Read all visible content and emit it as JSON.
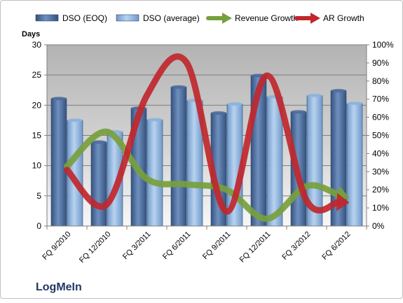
{
  "chart_data": {
    "type": "bar",
    "categories": [
      "FQ 9/2010",
      "FQ 12/2010",
      "FQ 3/2011",
      "FQ 6/2011",
      "FQ 9/2011",
      "FQ 12/2011",
      "FQ 3/2012",
      "FQ 6/2012"
    ],
    "series": [
      {
        "name": "DSO (EOQ)",
        "type": "bar",
        "axis": "left",
        "color": "#4f6d9a",
        "values": [
          21.1,
          13.9,
          19.5,
          23.0,
          18.7,
          24.9,
          18.9,
          22.4
        ]
      },
      {
        "name": "DSO (average)",
        "type": "bar",
        "axis": "left",
        "color": "#8fb4df",
        "values": [
          17.5,
          15.6,
          17.6,
          20.8,
          20.2,
          21.4,
          21.6,
          20.3
        ]
      },
      {
        "name": "Revenue Growth",
        "type": "line",
        "axis": "right",
        "color": "#77a03c",
        "values": [
          0.33,
          0.52,
          0.26,
          0.23,
          0.2,
          0.04,
          0.22,
          0.16
        ]
      },
      {
        "name": "AR Growth",
        "type": "line",
        "axis": "right",
        "color": "#c0272d",
        "values": [
          0.31,
          0.12,
          0.72,
          0.9,
          0.08,
          0.83,
          0.14,
          0.13
        ]
      }
    ],
    "ylabel": "Days",
    "ylim": [
      0,
      30
    ],
    "yticks": [
      "0",
      "5",
      "10",
      "15",
      "20",
      "25",
      "30"
    ],
    "y2lim": [
      0,
      1
    ],
    "y2ticks": [
      "0%",
      "10%",
      "20%",
      "30%",
      "40%",
      "50%",
      "60%",
      "70%",
      "80%",
      "90%",
      "100%"
    ],
    "grid": true,
    "legend": "top",
    "plot_background": "#bfbfbf"
  },
  "brand": {
    "label": "LogMeIn",
    "color": "#1f3864"
  }
}
